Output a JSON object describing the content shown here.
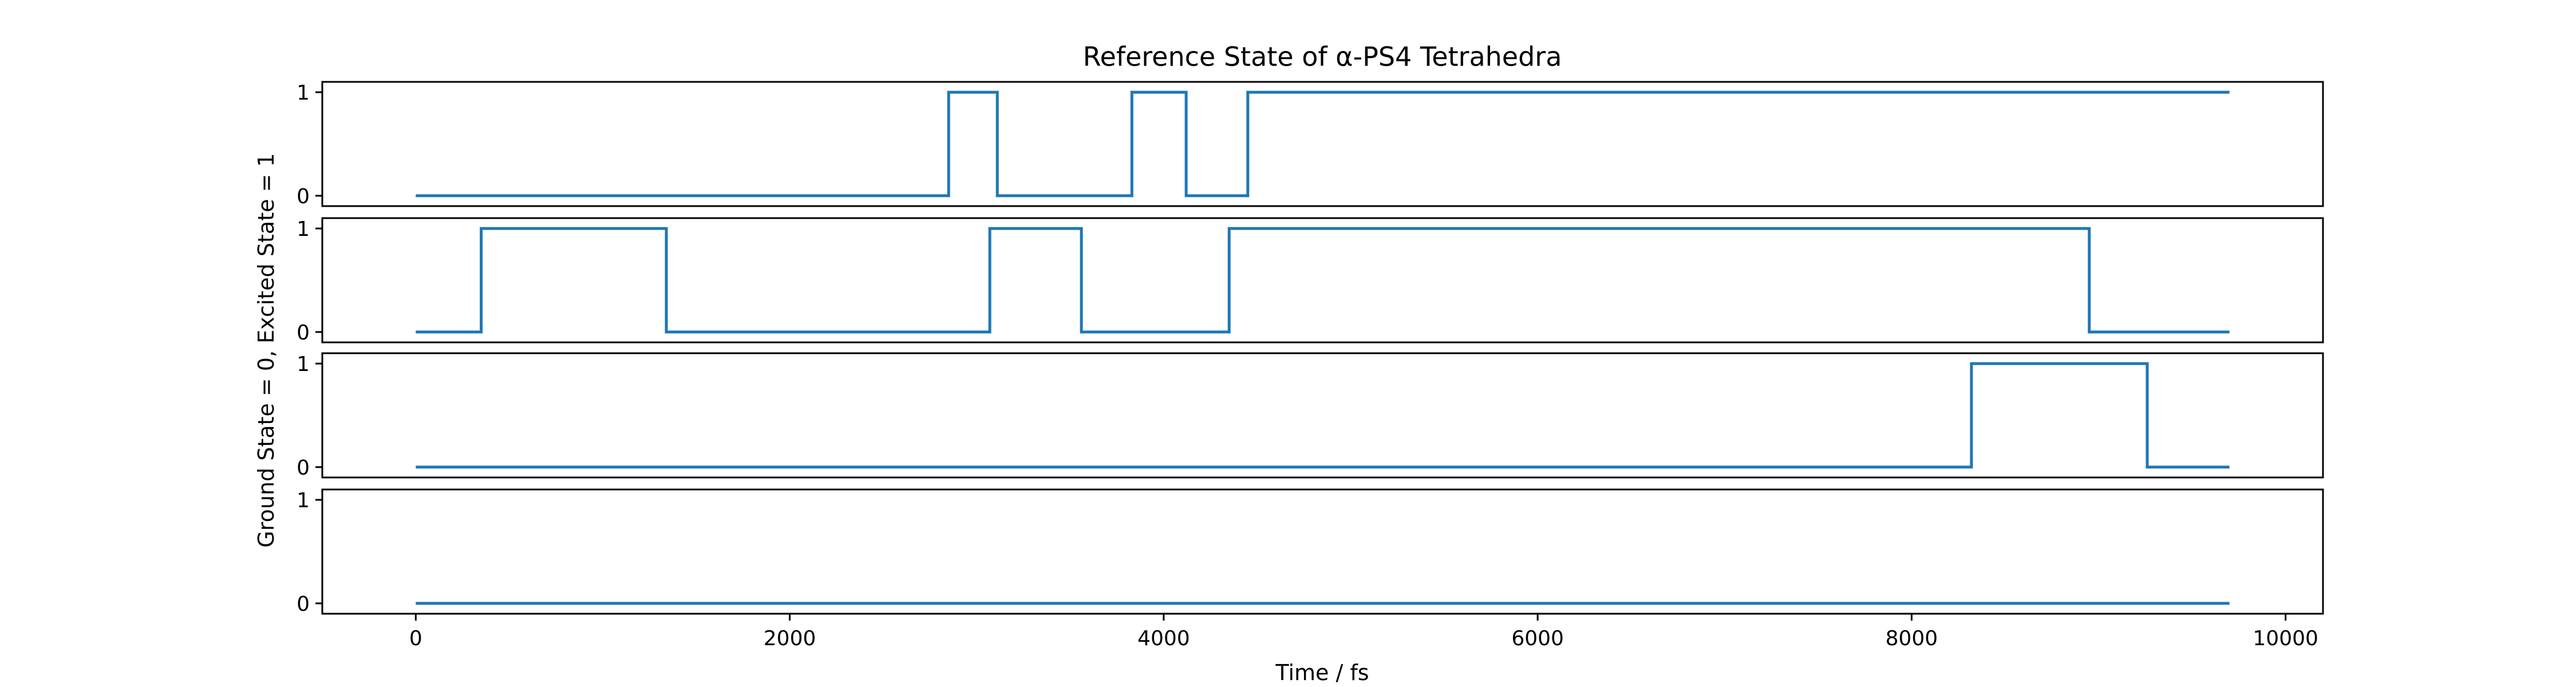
{
  "chart_data": {
    "type": "line",
    "title": "Reference State of α-PS4 Tetrahedra",
    "xlabel": "Time / fs",
    "ylabel": "Ground State = 0, Excited State = 1",
    "xlim": [
      -500,
      10200
    ],
    "ylim": [
      -0.1,
      1.1
    ],
    "x_ticks": [
      0,
      2000,
      4000,
      6000,
      8000,
      10000
    ],
    "y_ticks": [
      0,
      1
    ],
    "grid": false,
    "line_color": "#1f77b4",
    "x_range": [
      0,
      9700
    ],
    "series": [
      {
        "values": [
          [
            0,
            0
          ],
          [
            2850,
            0
          ],
          [
            2850,
            1
          ],
          [
            3110,
            1
          ],
          [
            3110,
            0
          ],
          [
            3830,
            0
          ],
          [
            3830,
            1
          ],
          [
            4120,
            1
          ],
          [
            4120,
            0
          ],
          [
            4450,
            0
          ],
          [
            4450,
            1
          ],
          [
            9700,
            1
          ]
        ]
      },
      {
        "values": [
          [
            0,
            0
          ],
          [
            350,
            0
          ],
          [
            350,
            1
          ],
          [
            1340,
            1
          ],
          [
            1340,
            0
          ],
          [
            3070,
            0
          ],
          [
            3070,
            1
          ],
          [
            3560,
            1
          ],
          [
            3560,
            0
          ],
          [
            4350,
            0
          ],
          [
            4350,
            1
          ],
          [
            8950,
            1
          ],
          [
            8950,
            0
          ],
          [
            9700,
            0
          ]
        ]
      },
      {
        "values": [
          [
            0,
            0
          ],
          [
            8320,
            0
          ],
          [
            8320,
            1
          ],
          [
            9260,
            1
          ],
          [
            9260,
            0
          ],
          [
            9700,
            0
          ]
        ]
      },
      {
        "values": [
          [
            0,
            0
          ],
          [
            9700,
            0
          ]
        ]
      }
    ]
  }
}
